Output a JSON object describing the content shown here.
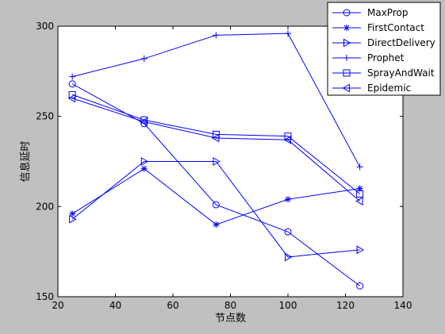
{
  "colors": {
    "figure_bg": "#c0c0c0",
    "axes_bg": "#ffffff",
    "series": "#0000ff",
    "axis": "#000000"
  },
  "chart_data": {
    "type": "line",
    "title": "",
    "xlabel": "节点数",
    "ylabel": "信息延时",
    "xlim": [
      20,
      140
    ],
    "ylim": [
      150,
      300
    ],
    "xticks": [
      20,
      40,
      60,
      80,
      100,
      120,
      140
    ],
    "yticks": [
      150,
      200,
      250,
      300
    ],
    "grid": false,
    "legend_position": "top-right",
    "x": [
      25,
      50,
      75,
      100,
      125
    ],
    "series": [
      {
        "name": "MaxProp",
        "marker": "circle",
        "values": [
          268,
          246,
          201,
          186,
          156
        ]
      },
      {
        "name": "FirstContact",
        "marker": "asterisk",
        "values": [
          196,
          221,
          190,
          204,
          210
        ]
      },
      {
        "name": "DirectDelivery",
        "marker": "triangle-right",
        "values": [
          193,
          225,
          225,
          172,
          176
        ]
      },
      {
        "name": "Prophet",
        "marker": "plus",
        "values": [
          272,
          282,
          295,
          296,
          222
        ]
      },
      {
        "name": "SprayAndWait",
        "marker": "square",
        "values": [
          262,
          248,
          240,
          239,
          207
        ]
      },
      {
        "name": "Epidemic",
        "marker": "triangle-left",
        "values": [
          260,
          247,
          238,
          237,
          203
        ]
      }
    ]
  }
}
